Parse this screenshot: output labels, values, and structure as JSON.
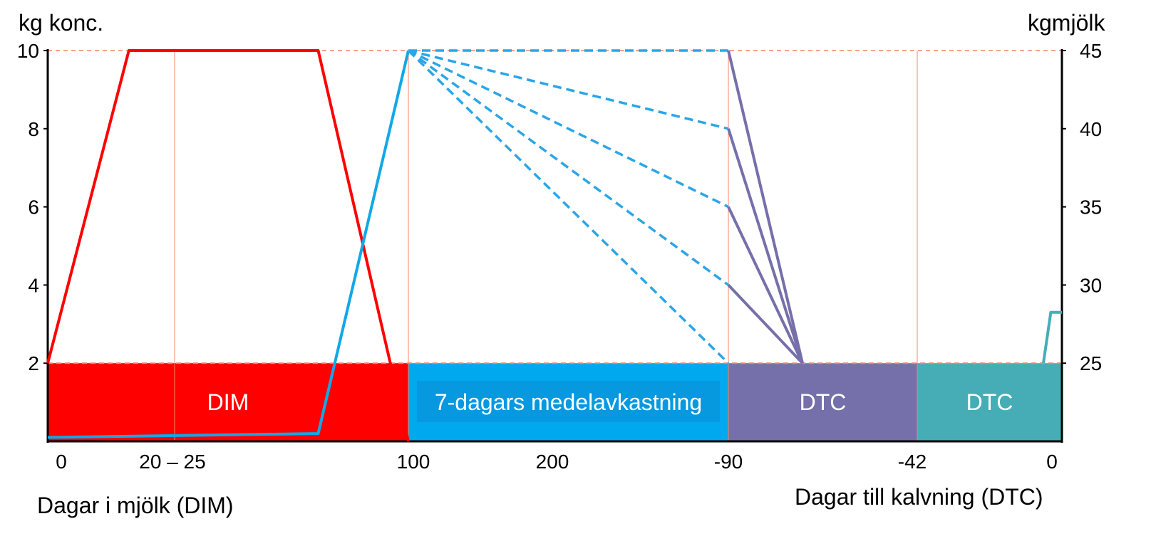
{
  "chart_data": {
    "type": "line",
    "y_left_title": "kg konc.",
    "y_right_title": "kgmjölk",
    "x_left_title": "Dagar i mjölk (DIM)",
    "x_right_title": "Dagar till kalvning (DTC)",
    "y_left_ticks": [
      "10",
      "8",
      "6",
      "4",
      "2"
    ],
    "y_right_ticks": [
      "45",
      "40",
      "35",
      "30",
      "25"
    ],
    "x_ticks": [
      "0",
      "20 – 25",
      "100",
      "200",
      "-90",
      "-42",
      "0"
    ],
    "ylim_left": [
      0,
      10
    ],
    "ylim_right": [
      20,
      45
    ],
    "phases": [
      {
        "label": "DIM",
        "color": "#ff0000"
      },
      {
        "label": "7-dagars medelavkastning",
        "color": "#00a8f0"
      },
      {
        "label": "DTC",
        "color": "#7570aa"
      },
      {
        "label": "DTC",
        "color": "#46adb7"
      }
    ],
    "series": [
      {
        "color": "#ff0000",
        "points": [
          [
            0,
            2
          ],
          [
            22.5,
            10
          ],
          [
            75,
            10
          ],
          [
            100,
            0
          ]
        ]
      },
      {
        "color": "#12a8e6",
        "points": [
          [
            0,
            0.1
          ],
          [
            75,
            0.2
          ],
          [
            100,
            10
          ]
        ]
      },
      {
        "color": "#2aa6e8",
        "dashed": true,
        "points": [
          [
            100,
            10
          ],
          [
            -90,
            10
          ]
        ]
      },
      {
        "color": "#2aa6e8",
        "dashed": true,
        "points": [
          [
            100,
            10
          ],
          [
            -90,
            8
          ]
        ]
      },
      {
        "color": "#2aa6e8",
        "dashed": true,
        "points": [
          [
            100,
            10
          ],
          [
            -90,
            6
          ]
        ]
      },
      {
        "color": "#2aa6e8",
        "dashed": true,
        "points": [
          [
            100,
            10
          ],
          [
            -90,
            4
          ]
        ]
      },
      {
        "color": "#2aa6e8",
        "dashed": true,
        "points": [
          [
            100,
            10
          ],
          [
            -90,
            2
          ]
        ]
      },
      {
        "color": "#7570aa",
        "points": [
          [
            -90,
            10
          ],
          [
            -70,
            2
          ]
        ]
      },
      {
        "color": "#7570aa",
        "points": [
          [
            -90,
            8
          ],
          [
            -70,
            2
          ]
        ]
      },
      {
        "color": "#7570aa",
        "points": [
          [
            -90,
            6
          ],
          [
            -70,
            2
          ]
        ]
      },
      {
        "color": "#7570aa",
        "points": [
          [
            -90,
            4
          ],
          [
            -70,
            2
          ]
        ]
      },
      {
        "color": "#46adb7",
        "points": [
          [
            -5,
            2
          ],
          [
            -3,
            3.3
          ],
          [
            0,
            3.3
          ]
        ]
      }
    ]
  }
}
